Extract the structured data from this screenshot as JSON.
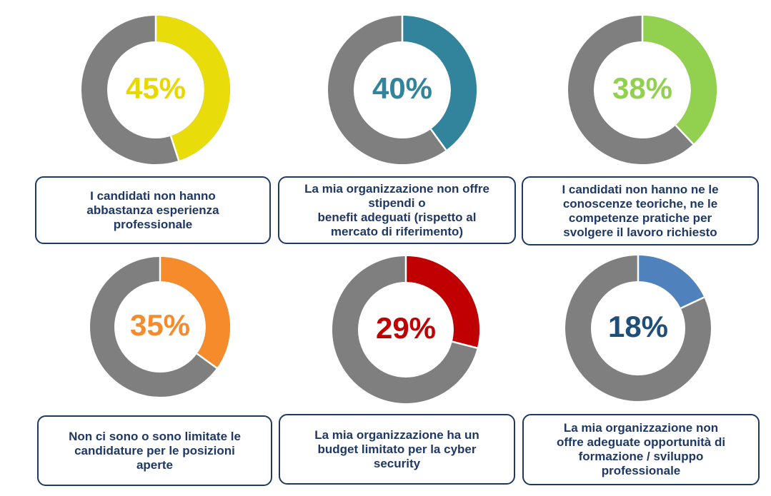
{
  "colors": {
    "remainder": "#7f7f7f",
    "box_border": "#1f3864",
    "box_text": "#1f3864"
  },
  "chart_data": [
    {
      "type": "pie",
      "value": 45,
      "label": "45%",
      "color": "#e8dc0b",
      "text_color": "#e6d800",
      "caption": "I candidati non hanno\nabbastanza esperienza\nprofessionale"
    },
    {
      "type": "pie",
      "value": 40,
      "label": "40%",
      "color": "#31849b",
      "text_color": "#31849b",
      "caption": "La mia organizzazione non offre\nstipendi o\nbenefit adeguati (rispetto al\nmercato di riferimento)"
    },
    {
      "type": "pie",
      "value": 38,
      "label": "38%",
      "color": "#92d050",
      "text_color": "#92d050",
      "caption": "I candidati non hanno ne le\nconoscenze teoriche, ne le\ncompetenze pratiche per\nsvolgere il lavoro richiesto"
    },
    {
      "type": "pie",
      "value": 35,
      "label": "35%",
      "color": "#f58b2a",
      "text_color": "#f58b2a",
      "caption": "Non ci sono o sono limitate le\ncandidature per le posizioni\naperte"
    },
    {
      "type": "pie",
      "value": 29,
      "label": "29%",
      "color": "#c00000",
      "text_color": "#c00000",
      "caption": "La mia organizzazione ha un\nbudget limitato per la cyber\nsecurity"
    },
    {
      "type": "pie",
      "value": 18,
      "label": "18%",
      "color": "#4f81bd",
      "text_color": "#1f4e79",
      "caption": "La mia organizzazione non\noffre adeguate opportunità di\nformazione / sviluppo\nprofessionale"
    }
  ]
}
